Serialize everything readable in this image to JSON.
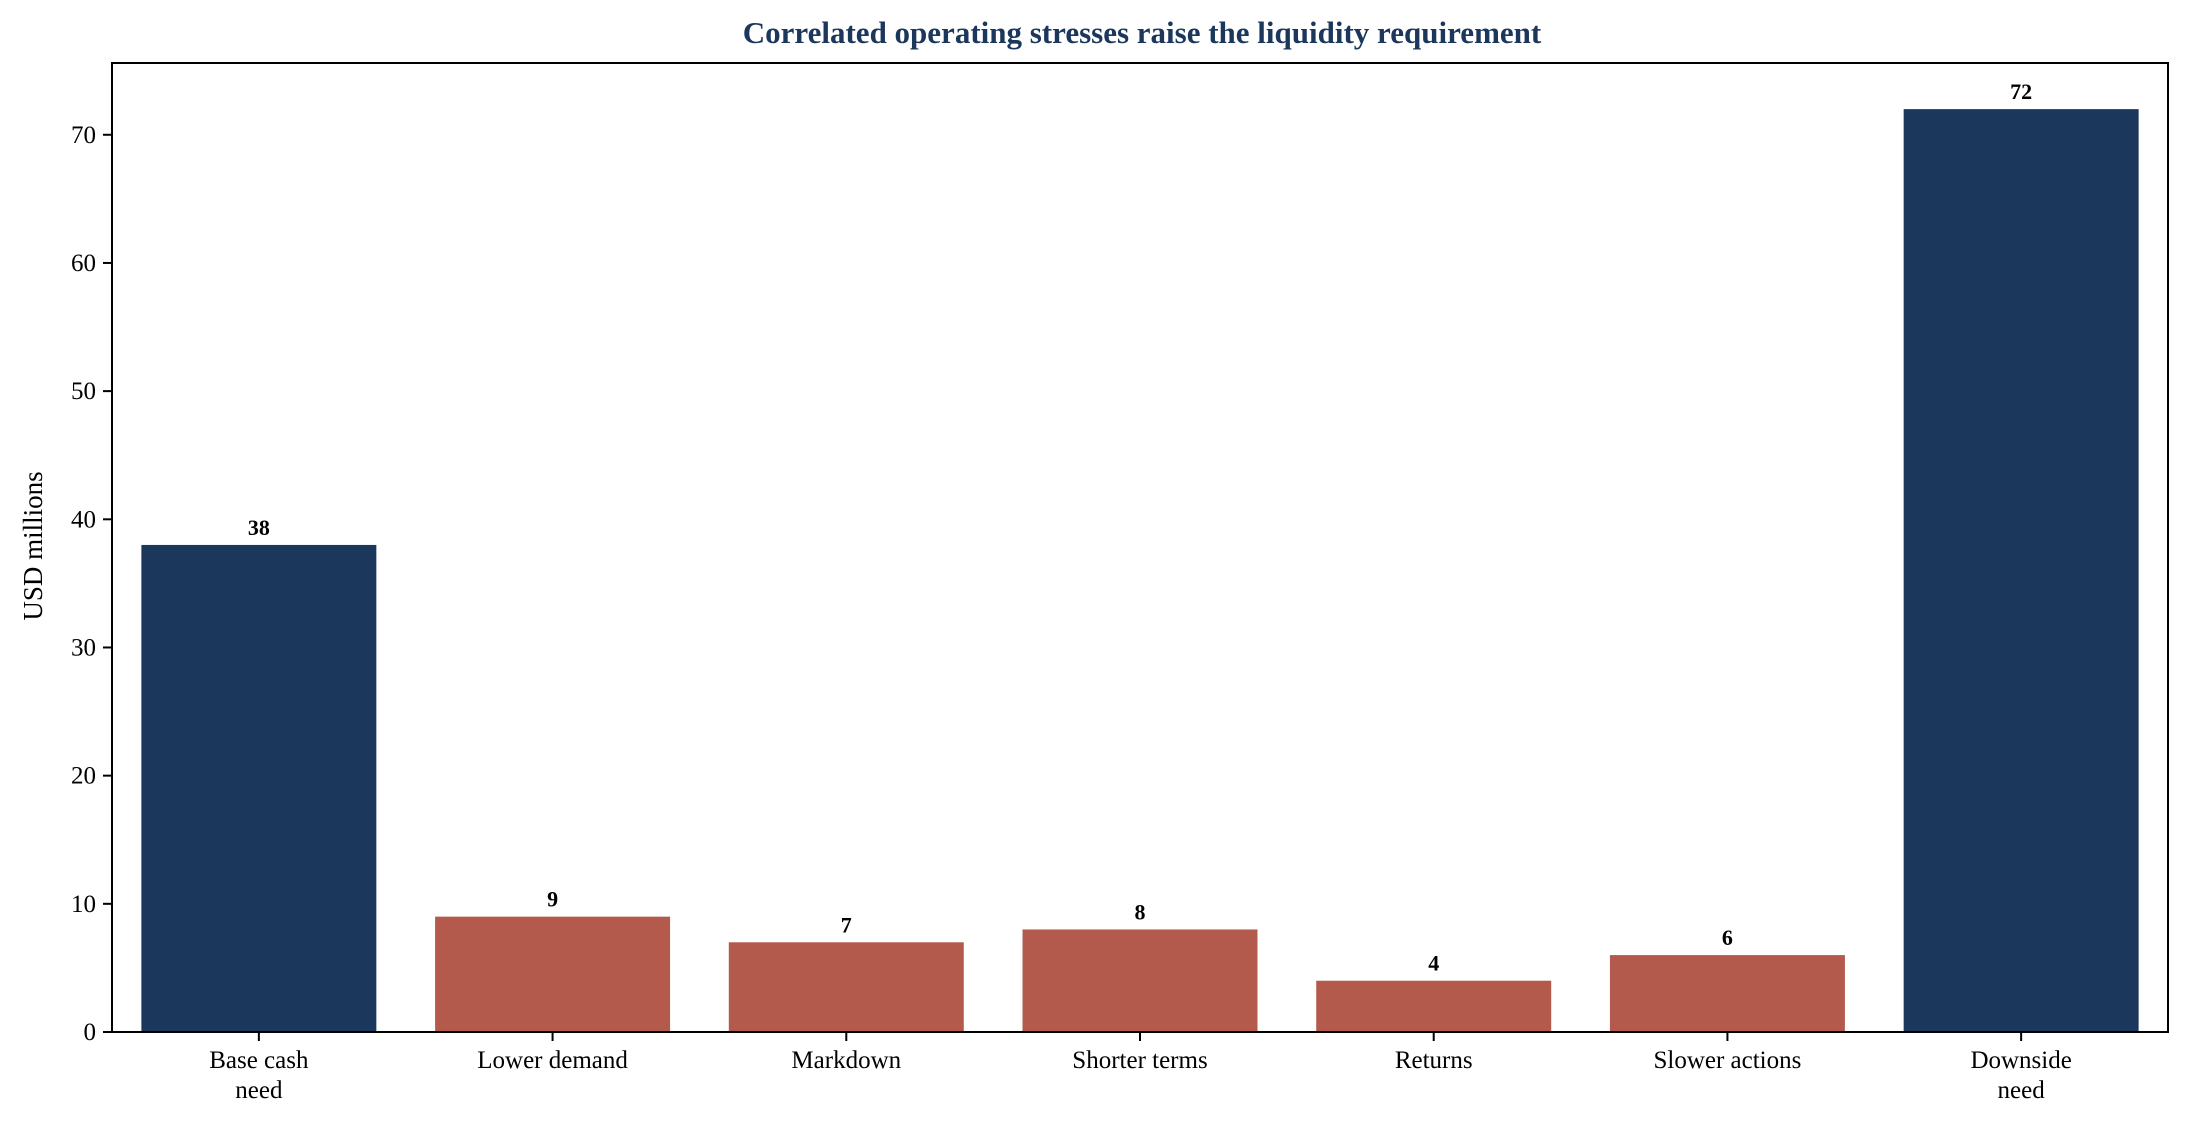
{
  "chart_data": {
    "type": "bar",
    "title": "Correlated operating stresses raise the liquidity requirement",
    "xlabel": "",
    "ylabel": "USD millions",
    "ylim": [
      0,
      75.6
    ],
    "yticks": [
      0,
      10,
      20,
      30,
      40,
      50,
      60,
      70
    ],
    "grid": false,
    "legend": "none",
    "categories": [
      [
        "Base cash",
        "need"
      ],
      [
        "Lower demand"
      ],
      [
        "Markdown"
      ],
      [
        "Shorter terms"
      ],
      [
        "Returns"
      ],
      [
        "Slower actions"
      ],
      [
        "Downside",
        "need"
      ]
    ],
    "values": [
      38,
      9,
      7,
      8,
      4,
      6,
      72
    ],
    "data_labels": [
      "38",
      "9",
      "7",
      "8",
      "4",
      "6",
      "72"
    ],
    "bar_roles": [
      "total",
      "stress",
      "stress",
      "stress",
      "stress",
      "stress",
      "total"
    ]
  },
  "colors": {
    "total": "#1b375c",
    "stress": "#b45a4c",
    "title": "#1b375c",
    "axis": "#000000"
  }
}
